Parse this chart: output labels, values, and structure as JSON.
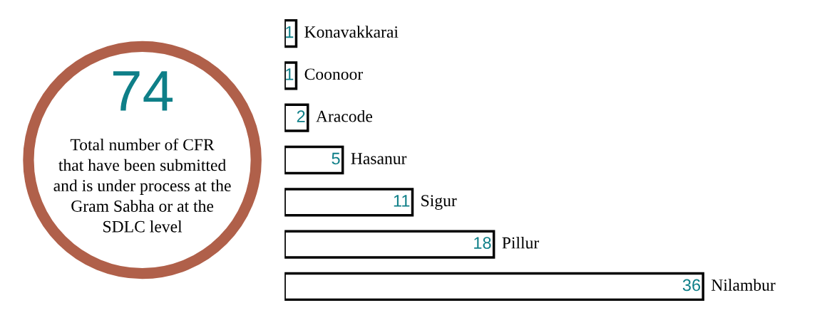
{
  "chart_data": {
    "type": "bar",
    "orientation": "horizontal",
    "categories": [
      "Konavakkarai",
      "Coonoor",
      "Aracode",
      "Hasanur",
      "Sigur",
      "Pillur",
      "Nilambur"
    ],
    "values": [
      1,
      1,
      2,
      5,
      11,
      18,
      36
    ],
    "color": "#ffffff",
    "data_labels": true,
    "annotations": [
      "74",
      "Total number of CFR\nthat have been submitted\nand is under process at the\nGram Sabha or at the\nSDLC level"
    ]
  }
}
